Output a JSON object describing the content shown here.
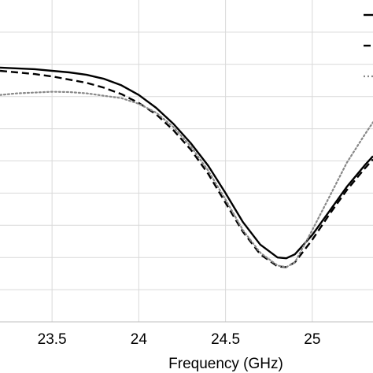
{
  "chart_data": {
    "type": "line",
    "title": "",
    "xlabel": "Frequency (GHz)",
    "ylabel": "",
    "xlim": [
      23.2,
      25.35
    ],
    "ylim": [
      -20,
      0
    ],
    "x_ticks": [
      23.5,
      24,
      24.5,
      25
    ],
    "x_tick_labels": [
      "23.5",
      "24",
      "24.5",
      "25"
    ],
    "y_gridlines": [
      -2,
      -4,
      -6,
      -8,
      -10,
      -12,
      -14,
      -16,
      -18
    ],
    "grid": true,
    "legend": {
      "placement": "top-right",
      "entries": [
        "",
        "",
        ""
      ]
    },
    "series": [
      {
        "style": "solid",
        "color": "#000000",
        "x": [
          23.2,
          23.3,
          23.4,
          23.5,
          23.6,
          23.7,
          23.8,
          23.9,
          24.0,
          24.1,
          24.2,
          24.3,
          24.4,
          24.5,
          24.6,
          24.7,
          24.8,
          24.85,
          24.9,
          25.0,
          25.1,
          25.2,
          25.3,
          25.35
        ],
        "y": [
          -4.2,
          -4.25,
          -4.3,
          -4.4,
          -4.5,
          -4.65,
          -4.9,
          -5.3,
          -5.9,
          -6.7,
          -7.7,
          -8.9,
          -10.3,
          -12.0,
          -13.8,
          -15.2,
          -16.0,
          -16.05,
          -15.8,
          -14.6,
          -13.1,
          -11.6,
          -10.3,
          -9.7
        ]
      },
      {
        "style": "dashed",
        "color": "#000000",
        "x": [
          23.2,
          23.3,
          23.4,
          23.5,
          23.6,
          23.7,
          23.8,
          23.9,
          24.0,
          24.1,
          24.2,
          24.3,
          24.4,
          24.5,
          24.6,
          24.7,
          24.8,
          24.85,
          24.9,
          25.0,
          25.1,
          25.2,
          25.3,
          25.35
        ],
        "y": [
          -4.4,
          -4.5,
          -4.6,
          -4.75,
          -4.95,
          -5.15,
          -5.45,
          -5.85,
          -6.4,
          -7.1,
          -8.1,
          -9.3,
          -10.8,
          -12.6,
          -14.4,
          -15.8,
          -16.55,
          -16.6,
          -16.3,
          -14.9,
          -13.3,
          -11.8,
          -10.5,
          -9.9
        ]
      },
      {
        "style": "dotted",
        "color": "#888888",
        "x": [
          23.2,
          23.3,
          23.4,
          23.5,
          23.6,
          23.7,
          23.8,
          23.9,
          24.0,
          24.1,
          24.2,
          24.3,
          24.4,
          24.5,
          24.6,
          24.7,
          24.8,
          24.85,
          24.9,
          25.0,
          25.1,
          25.2,
          25.3,
          25.35
        ],
        "y": [
          -5.9,
          -5.8,
          -5.75,
          -5.7,
          -5.72,
          -5.8,
          -5.95,
          -6.1,
          -6.45,
          -7.0,
          -7.9,
          -9.1,
          -10.6,
          -12.4,
          -14.3,
          -15.7,
          -16.5,
          -16.6,
          -16.3,
          -14.3,
          -12.2,
          -10.1,
          -8.4,
          -7.6
        ]
      }
    ]
  }
}
